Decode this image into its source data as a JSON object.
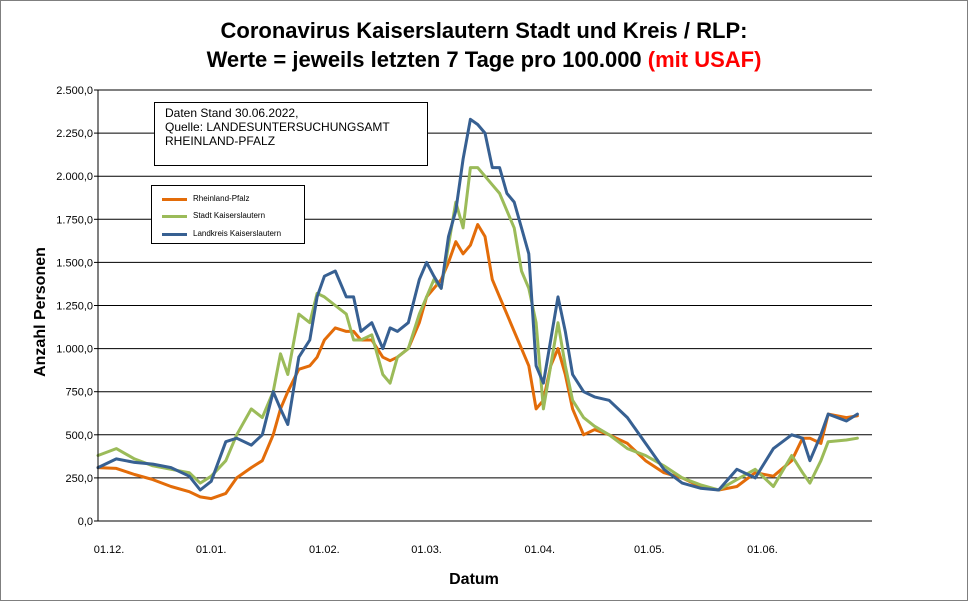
{
  "title": {
    "line1": "Coronavirus Kaiserslautern Stadt und Kreis / RLP:",
    "line2_main": "Werte = jeweils letzten 7 Tage pro 100.000 ",
    "line2_red": "(mit USAF)"
  },
  "source": {
    "line1": "Daten Stand 30.06.2022,",
    "line2": "Quelle: LANDESUNTERSUCHUNGSAMT",
    "line3": "RHEINLAND-PFALZ"
  },
  "colors": {
    "rlp": "#e36c09",
    "stadt": "#9bbb59",
    "landkreis": "#376092"
  },
  "chart_data": {
    "type": "line",
    "title": "Coronavirus Kaiserslautern Stadt und Kreis / RLP: Werte = jeweils letzten 7 Tage pro 100.000 (mit USAF)",
    "xlabel": "Datum",
    "ylabel": "Anzahl Personen",
    "ylim": [
      0,
      2500
    ],
    "yticks": [
      0,
      250,
      500,
      750,
      1000,
      1250,
      1500,
      1750,
      2000,
      2250,
      2500
    ],
    "ytick_labels": [
      "0,0",
      "250,0",
      "500,0",
      "750,0",
      "1.000,0",
      "1.250,0",
      "1.500,0",
      "1.750,0",
      "2.000,0",
      "2.250,0",
      "2.500,0"
    ],
    "xlim": [
      0,
      212
    ],
    "xticks": [
      0,
      31,
      62,
      90,
      121,
      151,
      182
    ],
    "xtick_labels": [
      "01.12.",
      "01.01.",
      "01.02.",
      "01.03.",
      "01.04.",
      "01.05.",
      "01.06."
    ],
    "grid": true,
    "legend_position": "upper-left",
    "x_unit": "days since 01.12.2021",
    "series": [
      {
        "name": "Rheinland-Pfalz",
        "color_key": "rlp",
        "x": [
          0,
          5,
          10,
          15,
          20,
          25,
          28,
          31,
          35,
          38,
          42,
          45,
          48,
          50,
          52,
          55,
          58,
          60,
          62,
          65,
          68,
          70,
          72,
          75,
          78,
          80,
          82,
          85,
          88,
          90,
          92,
          94,
          96,
          98,
          100,
          102,
          104,
          106,
          108,
          110,
          112,
          114,
          116,
          118,
          120,
          122,
          124,
          126,
          128,
          130,
          133,
          136,
          140,
          145,
          150,
          155,
          160,
          165,
          170,
          175,
          180,
          185,
          190,
          193,
          195,
          198,
          200,
          205,
          208
        ],
        "values": [
          310,
          305,
          270,
          240,
          200,
          170,
          140,
          130,
          160,
          250,
          310,
          350,
          500,
          650,
          750,
          880,
          900,
          950,
          1050,
          1120,
          1100,
          1100,
          1050,
          1050,
          950,
          930,
          950,
          1000,
          1150,
          1300,
          1350,
          1400,
          1500,
          1620,
          1550,
          1600,
          1720,
          1650,
          1400,
          1300,
          1200,
          1100,
          1000,
          900,
          650,
          700,
          900,
          1000,
          850,
          650,
          500,
          530,
          500,
          450,
          350,
          280,
          250,
          200,
          180,
          200,
          280,
          260,
          350,
          480,
          480,
          450,
          620,
          600,
          610
        ]
      },
      {
        "name": "Stadt Kaiserslautern",
        "color_key": "stadt",
        "x": [
          0,
          5,
          10,
          15,
          20,
          25,
          28,
          31,
          35,
          38,
          42,
          45,
          48,
          50,
          52,
          55,
          58,
          60,
          62,
          65,
          68,
          70,
          72,
          75,
          78,
          80,
          82,
          85,
          88,
          90,
          92,
          94,
          96,
          98,
          100,
          102,
          104,
          106,
          108,
          110,
          112,
          114,
          116,
          118,
          120,
          122,
          124,
          126,
          128,
          130,
          133,
          136,
          140,
          145,
          150,
          155,
          160,
          165,
          170,
          175,
          180,
          185,
          190,
          193,
          195,
          198,
          200,
          205,
          208
        ],
        "values": [
          380,
          420,
          360,
          320,
          300,
          280,
          220,
          260,
          350,
          500,
          650,
          600,
          750,
          970,
          850,
          1200,
          1150,
          1320,
          1300,
          1250,
          1200,
          1050,
          1050,
          1080,
          850,
          800,
          950,
          1000,
          1200,
          1300,
          1400,
          1350,
          1600,
          1850,
          1700,
          2050,
          2050,
          2000,
          1950,
          1900,
          1800,
          1700,
          1450,
          1350,
          1150,
          650,
          900,
          1150,
          900,
          700,
          600,
          550,
          500,
          420,
          380,
          320,
          250,
          210,
          180,
          240,
          300,
          200,
          380,
          280,
          220,
          350,
          460,
          470,
          480
        ]
      },
      {
        "name": "Landkreis Kaiserslautern",
        "color_key": "landkreis",
        "x": [
          0,
          5,
          10,
          15,
          20,
          25,
          28,
          31,
          35,
          38,
          42,
          45,
          48,
          50,
          52,
          55,
          58,
          60,
          62,
          65,
          68,
          70,
          72,
          75,
          78,
          80,
          82,
          85,
          88,
          90,
          92,
          94,
          96,
          98,
          100,
          102,
          104,
          106,
          108,
          110,
          112,
          114,
          116,
          118,
          120,
          122,
          124,
          126,
          128,
          130,
          133,
          136,
          140,
          145,
          150,
          155,
          160,
          165,
          170,
          175,
          180,
          185,
          190,
          193,
          195,
          198,
          200,
          205,
          208
        ],
        "values": [
          310,
          360,
          340,
          330,
          310,
          260,
          180,
          230,
          460,
          480,
          440,
          500,
          750,
          650,
          560,
          950,
          1050,
          1300,
          1420,
          1450,
          1300,
          1300,
          1100,
          1150,
          1000,
          1120,
          1100,
          1150,
          1400,
          1500,
          1420,
          1350,
          1650,
          1800,
          2100,
          2330,
          2300,
          2250,
          2050,
          2050,
          1900,
          1850,
          1700,
          1550,
          900,
          800,
          1050,
          1300,
          1100,
          850,
          750,
          720,
          700,
          600,
          450,
          300,
          220,
          190,
          180,
          300,
          250,
          420,
          500,
          480,
          350,
          500,
          620,
          580,
          620
        ]
      }
    ]
  },
  "labels": {
    "xlabel": "Datum",
    "ylabel": "Anzahl Personen"
  }
}
